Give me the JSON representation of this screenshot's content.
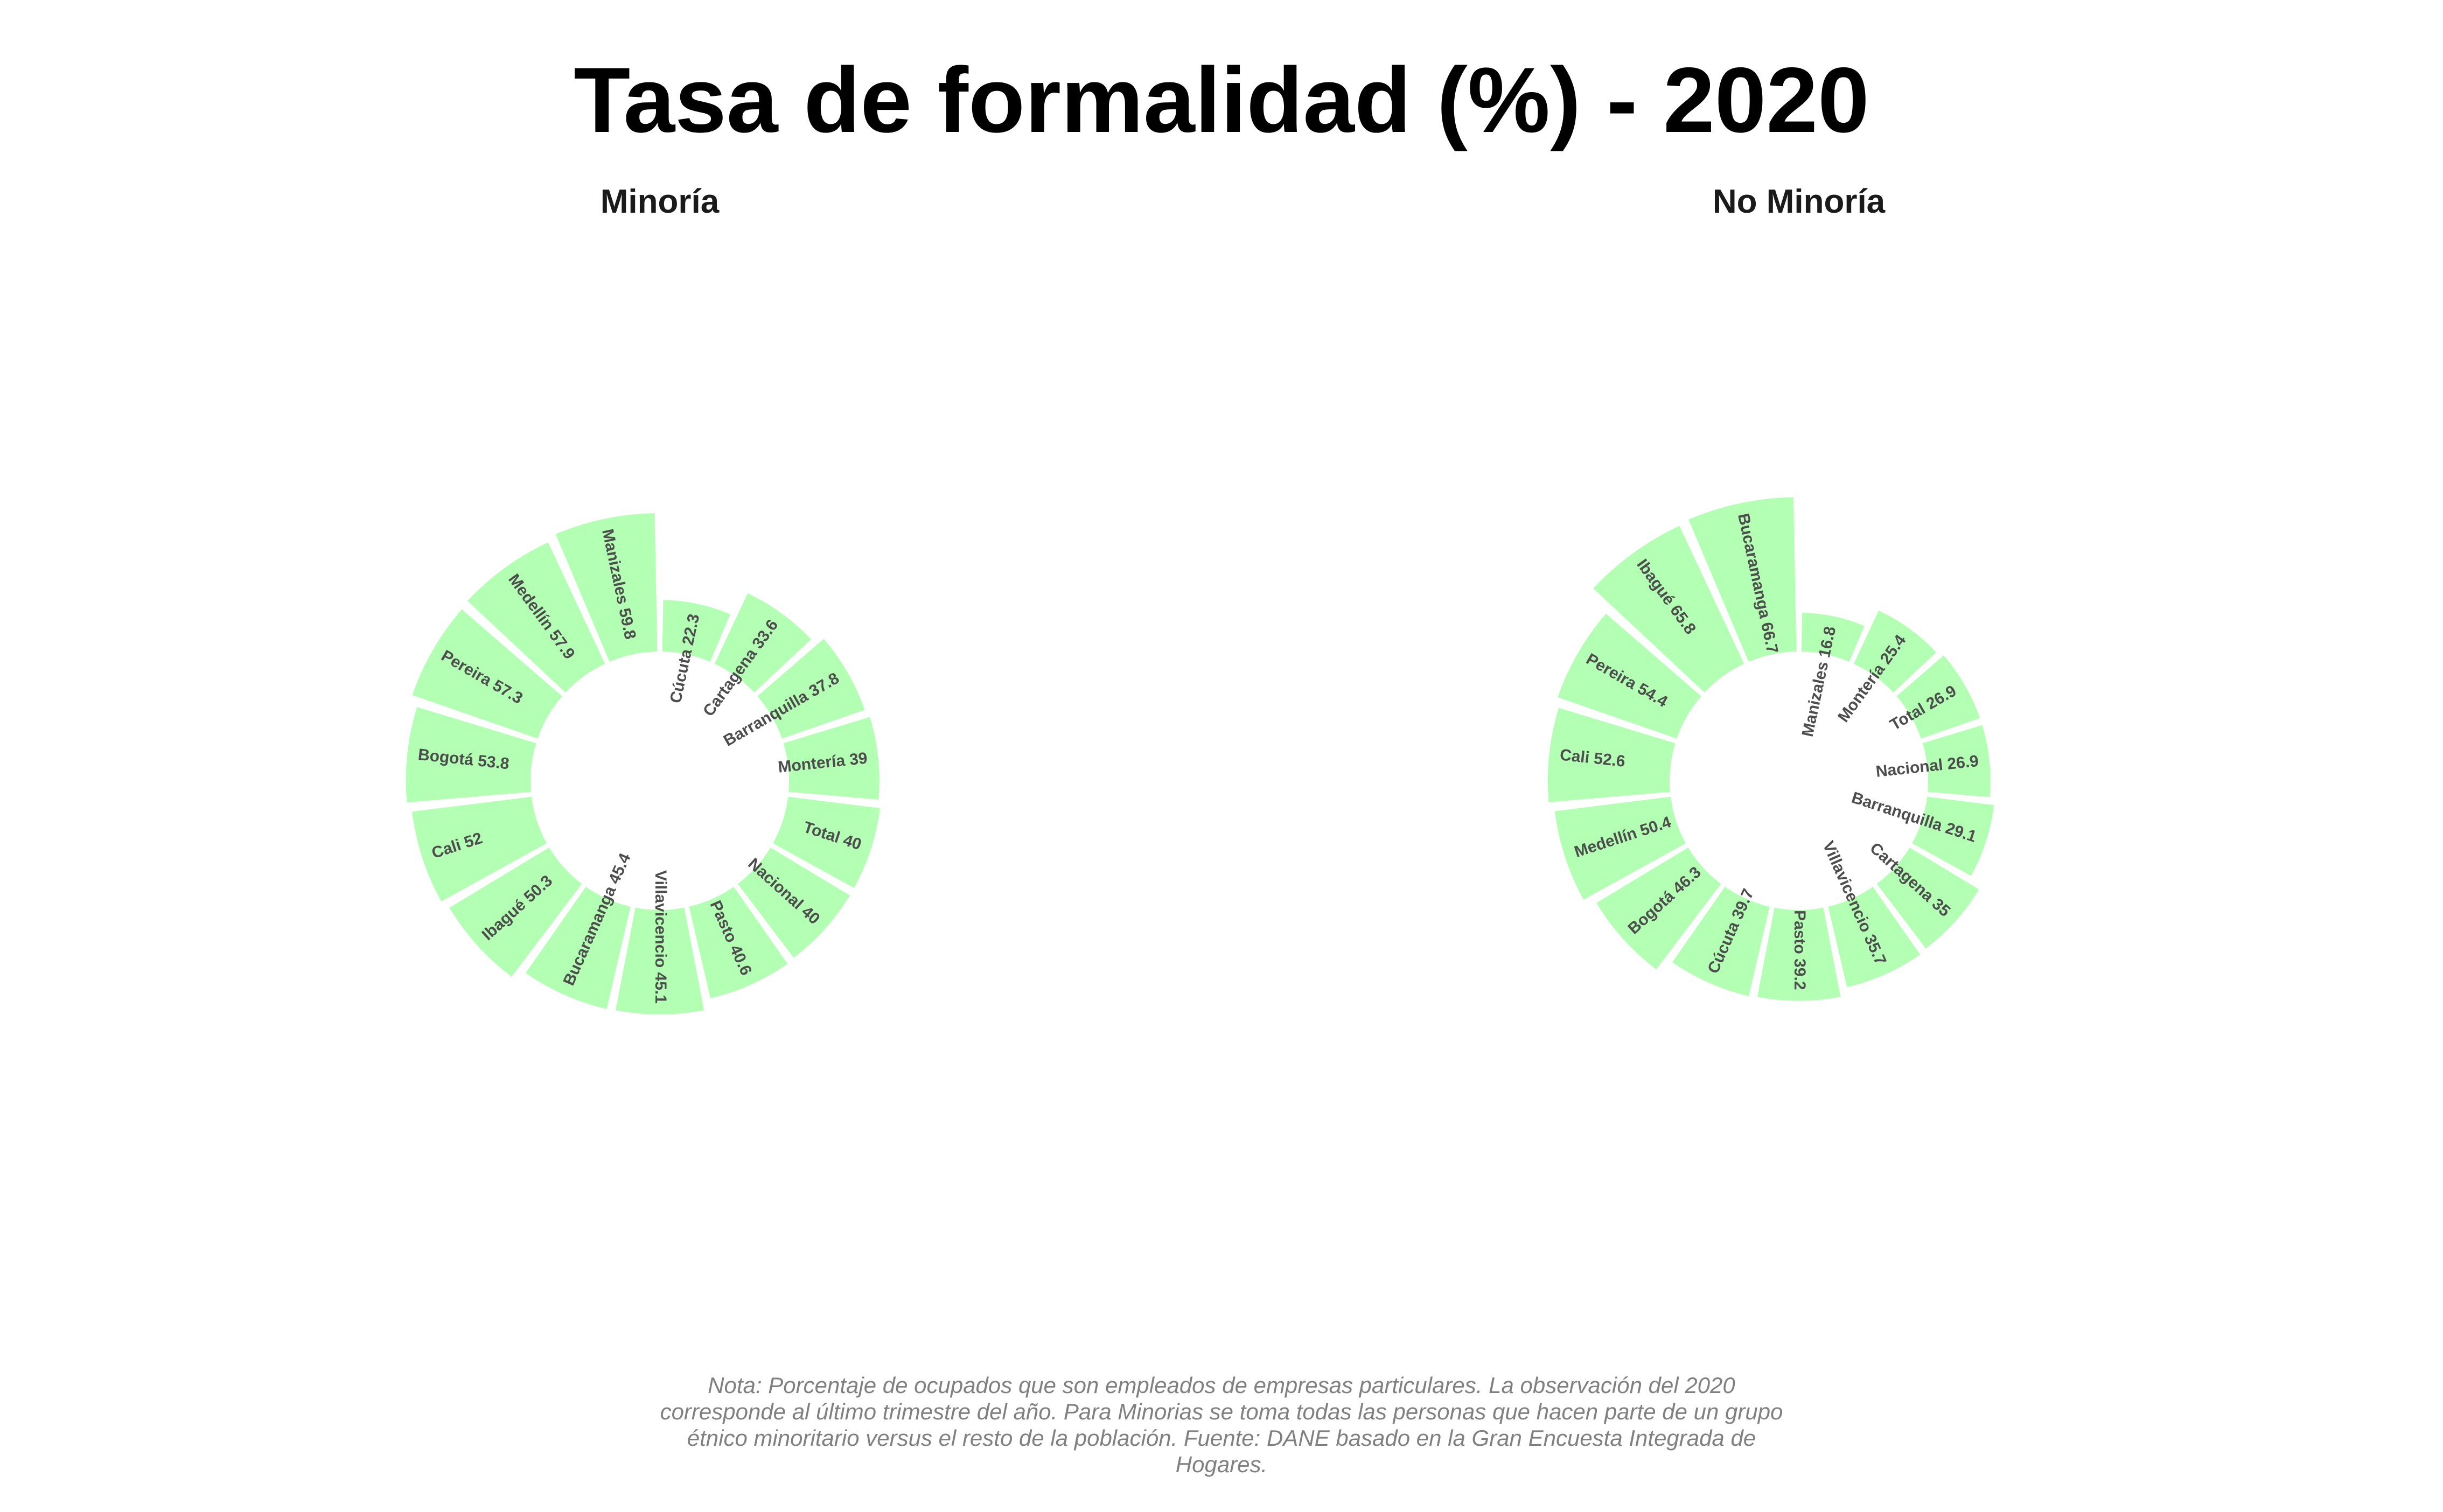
{
  "title": "Tasa de formalidad (%) - 2020",
  "note": "Nota: Porcentaje de ocupados que son empleados de empresas particulares. La observación del 2020 corresponde al último trimestre del año. Para Minorias se toma todas las personas que hacen parte de un grupo étnico minoritario versus el resto de la población. Fuente: DANE basado en la Gran Encuesta Integrada de Hogares.",
  "colors": {
    "bar": "#b3ffb3",
    "label": "#4d4d4d",
    "title": "#000000",
    "note": "#808080"
  },
  "chart_data": [
    {
      "type": "bar",
      "coord": "polar",
      "title": "Minoría",
      "categories": [
        "Cúcuta",
        "Cartagena",
        "Barranquilla",
        "Montería",
        "Total",
        "Nacional",
        "Pasto",
        "Villavicencio",
        "Bucaramanga",
        "Ibagué",
        "Cali",
        "Bogotá",
        "Pereira",
        "Medellín",
        "Manizales"
      ],
      "values": [
        22.3,
        33.6,
        37.8,
        39,
        40,
        40,
        40.6,
        45.1,
        45.4,
        50.3,
        52,
        53.8,
        57.3,
        57.9,
        59.8
      ],
      "labels": [
        "Cúcuta 22.3",
        "Cartagena 33.6",
        "Barranquilla 37.8",
        "Montería 39",
        "Total 40",
        "Nacional 40",
        "Pasto 40.6",
        "Villavicencio 45.1",
        "Bucaramanga 45.4",
        "Ibagué 50.3",
        "Cali 52",
        "Bogotá 53.8",
        "Pereira 57.3",
        "Medellín 57.9",
        "Manizales 59.8"
      ]
    },
    {
      "type": "bar",
      "coord": "polar",
      "title": "No Minoría",
      "categories": [
        "Manizales",
        "Montería",
        "Total",
        "Nacional",
        "Barranquilla",
        "Cartagena",
        "Villavicencio",
        "Pasto",
        "Cúcuta",
        "Bogotá",
        "Medellín",
        "Cali",
        "Pereira",
        "Ibagué",
        "Bucaramanga"
      ],
      "values": [
        16.8,
        25.4,
        26.9,
        26.9,
        29.1,
        35,
        35.7,
        39.2,
        39.7,
        46.3,
        50.4,
        52.6,
        54.4,
        65.8,
        66.7
      ],
      "labels": [
        "Manizales 16.8",
        "Montería 25.4",
        "Total 26.9",
        "Nacional 26.9",
        "Barranquilla 29.1",
        "Cartagena 35",
        "Villavicencio 35.7",
        "Pasto 39.2",
        "Cúcuta 39.7",
        "Bogotá 46.3",
        "Medellín 50.4",
        "Cali 52.6",
        "Pereira 54.4",
        "Ibagué 65.8",
        "Bucaramanga 66.7"
      ]
    }
  ]
}
